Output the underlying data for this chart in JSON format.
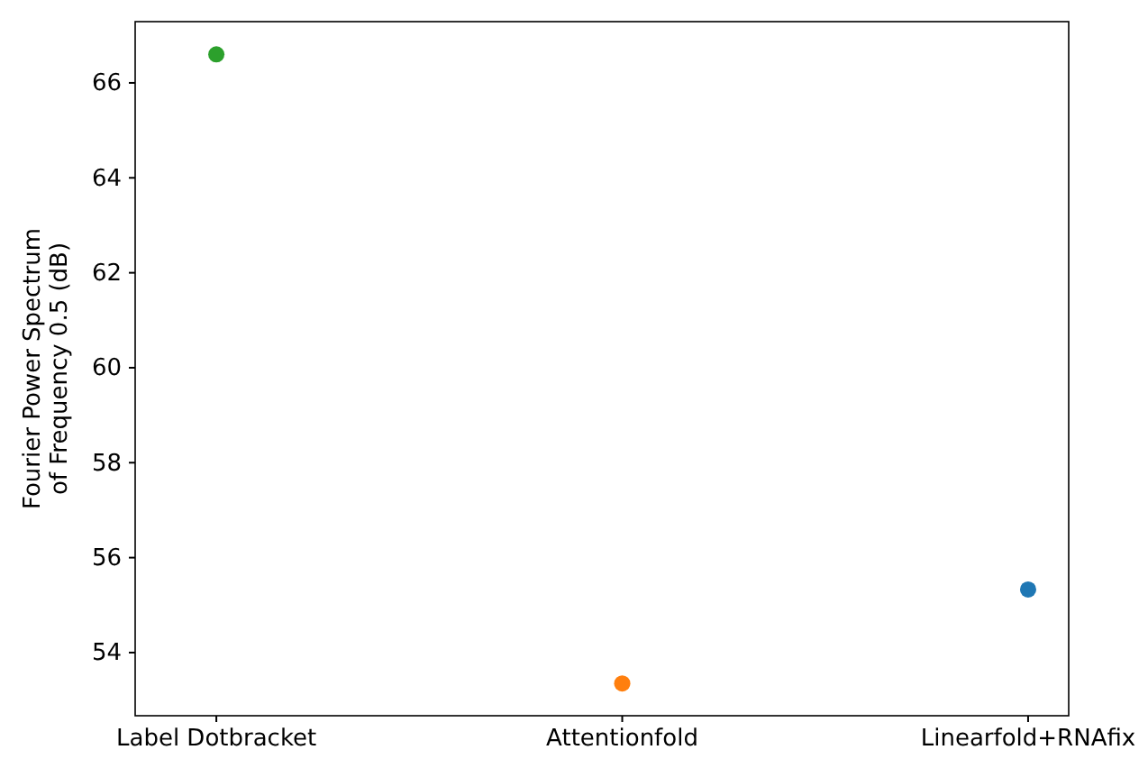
{
  "chart_data": {
    "type": "scatter",
    "ylabel": "Fourier Power Spectrum\nof Frequency 0.5 (dB)",
    "categories": [
      "Label Dotbracket",
      "Attentionfold",
      "Linearfold+RNAfix"
    ],
    "values": [
      66.6,
      53.35,
      55.33
    ],
    "colors": [
      "#2ca02c",
      "#ff7f0e",
      "#1f77b4"
    ],
    "ylim": [
      52.67,
      67.29
    ],
    "yticks": [
      54,
      56,
      58,
      60,
      62,
      64,
      66
    ],
    "marker": "circle",
    "grid": false
  }
}
